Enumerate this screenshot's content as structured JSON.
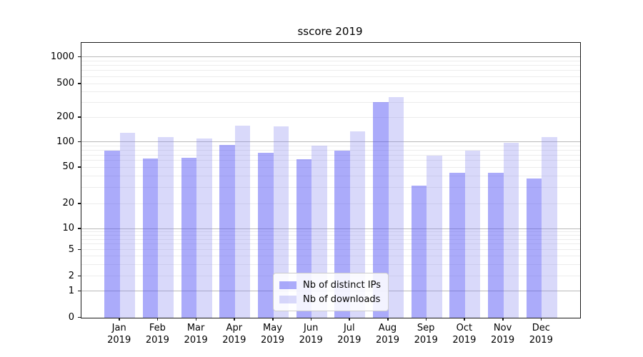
{
  "figure": {
    "title": "sscore 2019"
  },
  "chart_data": {
    "type": "bar",
    "title": "sscore 2019",
    "scale": "symlog",
    "grid": true,
    "legend_position": "lower center",
    "categories": [
      "Jan",
      "Feb",
      "Mar",
      "Apr",
      "May",
      "Jun",
      "Jul",
      "Aug",
      "Sep",
      "Oct",
      "Nov",
      "Dec"
    ],
    "x_year": "2019",
    "y_ticks": [
      0,
      1,
      2,
      5,
      10,
      20,
      50,
      100,
      200,
      500,
      1000
    ],
    "y_major_gridlines": [
      1,
      10,
      100,
      1000
    ],
    "ylim": [
      0,
      1450
    ],
    "series": [
      {
        "name": "Nb of distinct IPs",
        "color": "rgba(80,80,245,0.48)",
        "values": [
          80,
          64,
          66,
          93,
          75,
          63,
          80,
          305,
          32,
          44,
          44,
          38
        ]
      },
      {
        "name": "Nb of downloads",
        "color": "rgba(130,130,240,0.30)",
        "values": [
          130,
          115,
          112,
          160,
          158,
          92,
          135,
          350,
          70,
          80,
          98,
          115
        ]
      }
    ],
    "colors": {
      "major_grid": "#b9b9b9",
      "minor_grid": "#ececec",
      "spine": "#1a1a1a"
    }
  }
}
